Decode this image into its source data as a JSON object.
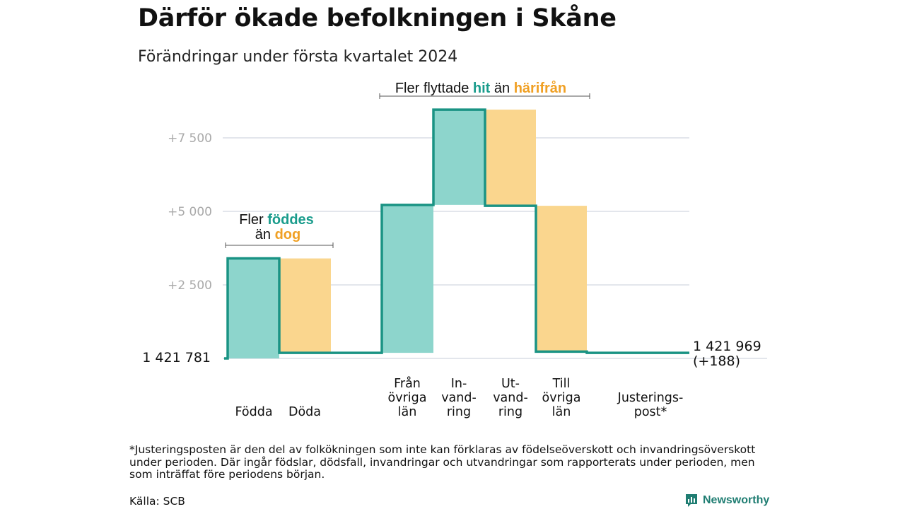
{
  "header": {
    "title": "Därför ökade befolkningen i Skåne",
    "subtitle": "Förändringar under första kvartalet 2024"
  },
  "annotations": {
    "natural": {
      "prefix": "Fler ",
      "green": "föddes",
      "line2_prefix": "än ",
      "orange": "dog"
    },
    "migration": {
      "prefix": "Fler flyttade ",
      "green": "hit",
      "mid": " än ",
      "orange": "härifrån"
    }
  },
  "footer": {
    "footnote": "*Justeringsposten är den del av folkökningen som inte kan förklaras av födelseöverskott och invandringsöverskott under perioden. Där ingår födslar, dödsfall, invandringar och utvandringar som rapporterats under perioden, men som inträffat före periodens början.",
    "source": "Källa: SCB",
    "brand": "Newsworthy"
  },
  "colors": {
    "increase": "#8dd5cc",
    "decrease": "#fad68e",
    "step_line": "#1a9384",
    "grid": "#dadde6",
    "highlight_green": "#1a9c8c",
    "highlight_orange": "#f0a024"
  },
  "chart_data": {
    "type": "waterfall",
    "title": "Därför ökade befolkningen i Skåne",
    "subtitle": "Förändringar under första kvartalet 2024",
    "start_label": "1 421 781",
    "start_value": 1421781,
    "end_label": [
      "1 421 969",
      "(+188)"
    ],
    "end_value": 1421969,
    "net_change": 188,
    "y_ticks": [
      {
        "value": 2500,
        "label": "+2 500"
      },
      {
        "value": 5000,
        "label": "+5 000"
      },
      {
        "value": 7500,
        "label": "+7 500"
      }
    ],
    "ylim": [
      0,
      8500
    ],
    "steps": [
      {
        "label": [
          "Födda"
        ],
        "change": 3400,
        "kind": "increase"
      },
      {
        "label": [
          "Döda"
        ],
        "change": -3210,
        "kind": "decrease"
      },
      {
        "label": [
          "Från",
          "övriga",
          "län"
        ],
        "change": 5030,
        "kind": "increase"
      },
      {
        "label": [
          "In-",
          "vand-",
          "ring"
        ],
        "change": 3240,
        "kind": "increase"
      },
      {
        "label": [
          "Ut-",
          "vand-",
          "ring"
        ],
        "change": -3270,
        "kind": "decrease"
      },
      {
        "label": [
          "Till",
          "övriga",
          "län"
        ],
        "change": -4960,
        "kind": "decrease"
      },
      {
        "label": [
          "Justerings-",
          "post*"
        ],
        "change": -42,
        "kind": "decrease",
        "shaded": false
      }
    ],
    "groups": [
      {
        "name": "natural",
        "steps": [
          0,
          1
        ]
      },
      {
        "name": "migration",
        "steps": [
          2,
          3,
          4,
          5
        ]
      }
    ],
    "grid": true,
    "legend": "none"
  }
}
